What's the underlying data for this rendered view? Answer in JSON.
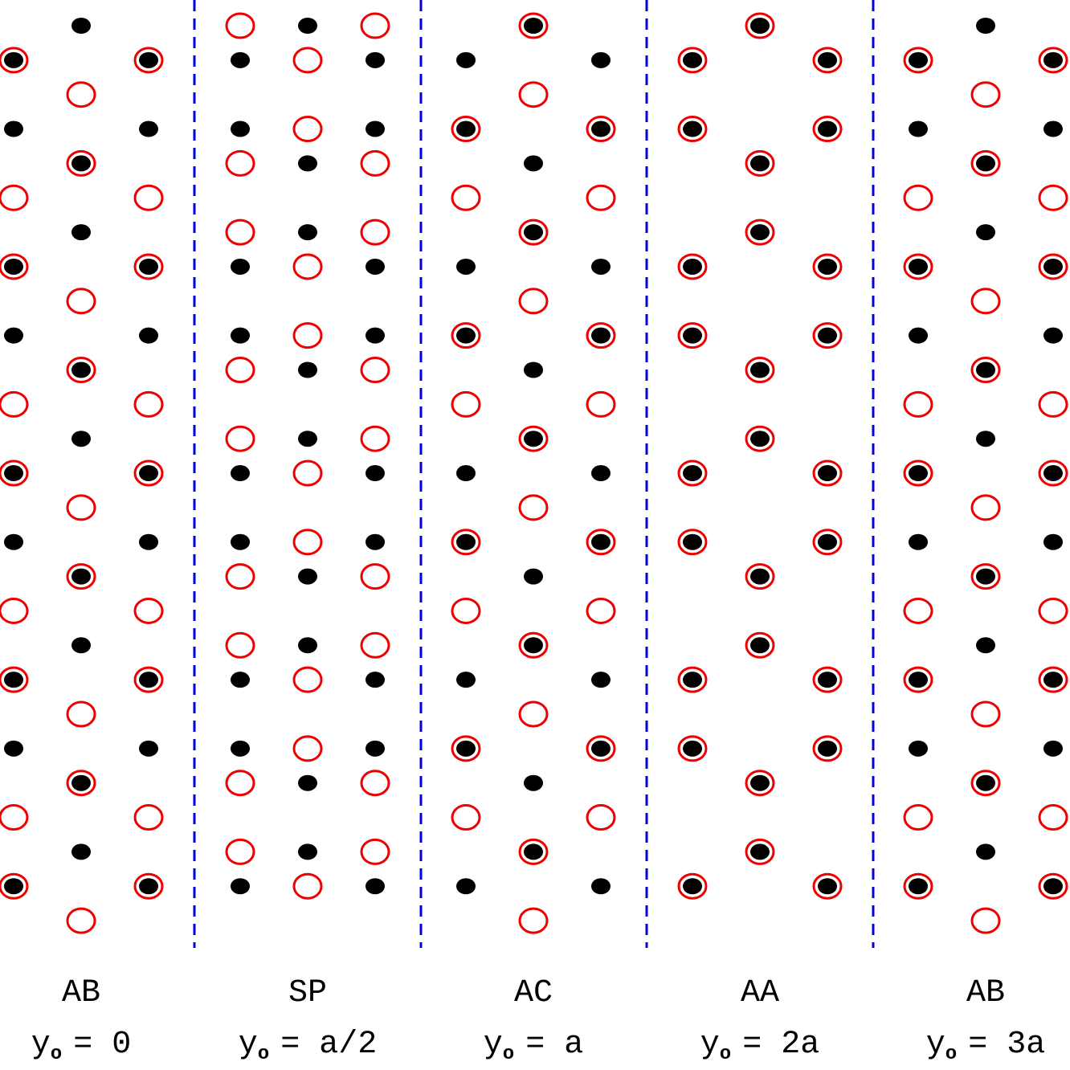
{
  "panels": [
    {
      "stacking": "AB",
      "variable": "y",
      "subscript": "o",
      "value": "= 0"
    },
    {
      "stacking": "SP",
      "variable": "y",
      "subscript": "o",
      "value": "= a/2"
    },
    {
      "stacking": "AC",
      "variable": "y",
      "subscript": "o",
      "value": "= a"
    },
    {
      "stacking": "AA",
      "variable": "y",
      "subscript": "o",
      "value": "= 2a"
    },
    {
      "stacking": "AB",
      "variable": "y",
      "subscript": "o",
      "value": "= 3a"
    }
  ]
}
